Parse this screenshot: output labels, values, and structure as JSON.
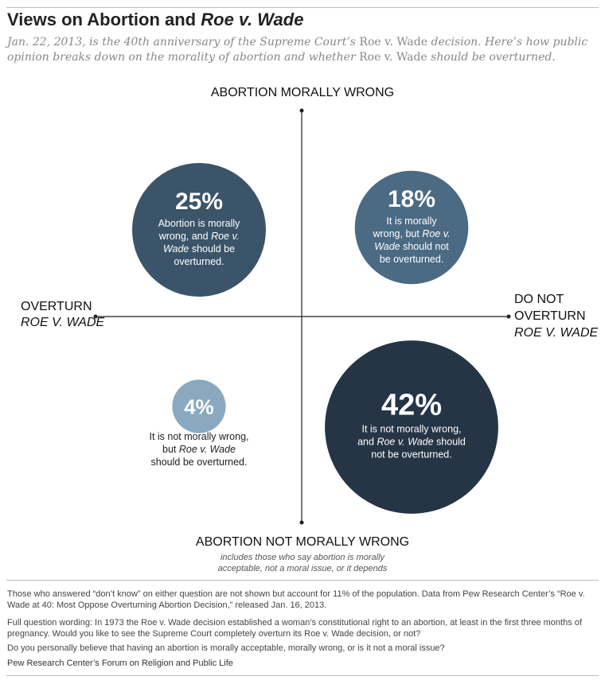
{
  "header": {
    "title_pre": "Views on Abortion and ",
    "title_italic": "Roe v. Wade",
    "subtitle_a": "Jan. 22, 2013, is the 40th anniversary of the Supreme Court’s ",
    "subtitle_b": "Roe v. Wade",
    "subtitle_c": " decision. Here’s how public opinion breaks down on the morality of abortion and whether ",
    "subtitle_d": "Roe v. Wade",
    "subtitle_e": " should be overturned."
  },
  "axes": {
    "top": "ABORTION MORALLY WRONG",
    "bottom": "ABORTION NOT MORALLY WRONG",
    "bottom_note_1": "includes those who say abortion is morally",
    "bottom_note_2": "acceptable, not a moral issue, or it depends",
    "left_1": "OVERTURN",
    "left_2": "ROE V. WADE",
    "right_1": "DO NOT",
    "right_2": "OVERTURN",
    "right_3": "ROE V. WADE"
  },
  "chart_data": {
    "type": "bubble-quadrant",
    "unit": "%",
    "quadrants": [
      {
        "id": "wrong-overturn",
        "value": 25,
        "label": "25%",
        "lines": [
          "Abortion is morally",
          "wrong, and |Roe v.|",
          "|Wade| should be",
          "overturned."
        ],
        "color": "#3b5469"
      },
      {
        "id": "wrong-not-overturn",
        "value": 18,
        "label": "18%",
        "lines": [
          "It is morally",
          "wrong, but |Roe v.|",
          "|Wade| should not",
          "be overturned."
        ],
        "color": "#4b6a84"
      },
      {
        "id": "not-wrong-overturn",
        "value": 4,
        "label": "4%",
        "lines": [
          "It is not morally wrong,",
          "but |Roe v. Wade|",
          "should be overturned."
        ],
        "color": "#8aa9c1"
      },
      {
        "id": "not-wrong-not-overturn",
        "value": 42,
        "label": "42%",
        "lines": [
          "It is not morally wrong,",
          "and |Roe v. Wade| should",
          "not be overturned."
        ],
        "color": "#253545"
      }
    ]
  },
  "notes": {
    "note1": "Those who answered “don’t know” on either question are not shown but account for 11% of the population. Data from Pew Research Center’s “Roe v. Wade at 40: Most Oppose Overturning Abortion Decision,” released Jan. 16, 2013.",
    "note2": "Full question wording: In 1973 the Roe v. Wade  decision established a woman’s constitutional right to an abortion, at least in the first three months of pregnancy. Would you like to see the Supreme Court completely overturn its Roe v. Wade decision, or not?",
    "note3": "Do you personally believe that having an abortion is morally acceptable, morally wrong, or is it not a moral issue?",
    "credit": "Pew Research Center’s Forum on Religion and Public Life"
  }
}
